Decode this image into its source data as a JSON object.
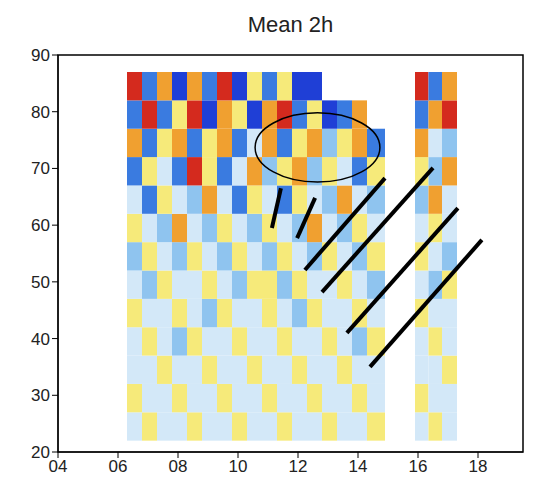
{
  "chart_data": {
    "type": "heatmap",
    "title": "Mean 2h",
    "xlim": [
      4,
      19.5
    ],
    "xticks": [
      {
        "value": 4,
        "label": "04"
      },
      {
        "value": 6,
        "label": "06"
      },
      {
        "value": 8,
        "label": "08"
      },
      10,
      12,
      14,
      16,
      18
    ],
    "ylim": [
      20,
      90
    ],
    "yticks": [
      20,
      30,
      40,
      50,
      60,
      70,
      80,
      90
    ],
    "zlim": [
      -1,
      1
    ],
    "colorscale": [
      {
        "value": -1,
        "color": "#1f3fd6"
      },
      {
        "value": -0.6,
        "color": "#3a7be0"
      },
      {
        "value": -0.3,
        "color": "#8fc4ef"
      },
      {
        "value": 0,
        "color": "#d3e8f8"
      },
      {
        "value": 0.3,
        "color": "#f6ea7a"
      },
      {
        "value": 0.6,
        "color": "#f0a030"
      },
      {
        "value": 1,
        "color": "#d42a1e"
      }
    ],
    "panels": [
      {
        "x_edges": [
          6.3,
          6.8,
          7.3,
          7.8,
          8.3,
          8.8,
          9.3,
          9.8,
          10.3,
          10.8,
          11.3,
          11.8,
          12.3,
          12.8,
          13.3,
          13.8,
          14.3,
          14.9
        ],
        "y_edges": [
          22,
          27,
          32,
          37,
          42,
          47,
          52,
          57,
          62,
          67,
          72,
          77,
          82,
          87
        ],
        "cells": [
          [
            0,
            0.3,
            0,
            0,
            0.3,
            0,
            0,
            0.3,
            0,
            0,
            0.3,
            0,
            0,
            0.3,
            0,
            0,
            0.3
          ],
          [
            0.3,
            0,
            0,
            0.3,
            0,
            0,
            0.3,
            0,
            0,
            0.3,
            0,
            0,
            0.3,
            0,
            0,
            0.3,
            0
          ],
          [
            0,
            0,
            0.3,
            0,
            0,
            0.3,
            0,
            0,
            0.3,
            0,
            0,
            0.3,
            0,
            0,
            0.3,
            0,
            0
          ],
          [
            0,
            0.3,
            0,
            -0.3,
            0.3,
            0,
            0,
            0.3,
            0,
            0,
            0.3,
            0,
            0,
            0.3,
            0,
            -0.3,
            0.3
          ],
          [
            0.3,
            0,
            0,
            0.3,
            0,
            -0.3,
            0.3,
            0,
            0,
            0.3,
            0,
            -0.3,
            0.3,
            0,
            0,
            0.3,
            0
          ],
          [
            0,
            -0.3,
            0.3,
            0,
            0,
            0.3,
            0,
            -0.3,
            0.3,
            0.3,
            -0.3,
            0.3,
            0,
            0,
            0.3,
            0,
            -0.3
          ],
          [
            -0.3,
            0.3,
            0,
            -0.3,
            0.3,
            0,
            -0.3,
            0.3,
            0,
            -0.3,
            0.3,
            0,
            -0.3,
            0.3,
            0,
            -0.3,
            0.3
          ],
          [
            0.3,
            0,
            -0.3,
            0.6,
            0,
            -0.3,
            0.3,
            0,
            -0.3,
            0.3,
            0,
            -0.3,
            0.6,
            0,
            -0.3,
            0.3,
            0
          ],
          [
            0,
            -0.6,
            0.3,
            0,
            -0.3,
            0.6,
            0,
            -0.6,
            0.3,
            0,
            -0.6,
            0.3,
            0,
            -0.3,
            0.6,
            0,
            -0.3
          ],
          [
            -0.6,
            0.3,
            0,
            -0.6,
            1,
            0.3,
            -0.6,
            0,
            0.6,
            -0.3,
            0.3,
            0.6,
            -0.3,
            0.3,
            0,
            -0.6,
            0.3
          ],
          [
            0.6,
            -0.6,
            0.3,
            0.6,
            -0.6,
            0.3,
            0.6,
            -0.6,
            0,
            0.6,
            -0.6,
            0.3,
            0.6,
            -0.3,
            0.3,
            0.6,
            -0.6
          ],
          [
            -0.6,
            1,
            -0.6,
            0.3,
            1,
            -1,
            0.6,
            0.3,
            -1,
            0.6,
            1,
            -0.6,
            0.3,
            -1,
            -0.6,
            0.6,
            null
          ],
          [
            1,
            -0.6,
            0.6,
            -1,
            0.6,
            -0.6,
            1,
            -1,
            0.3,
            -0.6,
            0.3,
            -1,
            -1,
            null,
            null,
            null,
            null
          ]
        ]
      },
      {
        "x_edges": [
          15.9,
          16.35,
          16.8,
          17.3
        ],
        "y_edges": [
          22,
          27,
          32,
          37,
          42,
          47,
          52,
          57,
          62,
          67,
          72,
          77,
          82,
          87
        ],
        "cells": [
          [
            0,
            0.3,
            0
          ],
          [
            0.3,
            0,
            0
          ],
          [
            0,
            0,
            0.3
          ],
          [
            0,
            0.3,
            0
          ],
          [
            0.3,
            0,
            0
          ],
          [
            0,
            -0.3,
            0.3
          ],
          [
            0.3,
            0,
            -0.3
          ],
          [
            0,
            0.3,
            0
          ],
          [
            -0.3,
            0.6,
            0
          ],
          [
            0.3,
            -0.3,
            0.6
          ],
          [
            0.6,
            0,
            -0.3
          ],
          [
            -0.6,
            0.6,
            1
          ],
          [
            1,
            -0.6,
            0.6
          ]
        ]
      }
    ],
    "annotations": {
      "ellipse": {
        "x": [
          10.57,
          14.73
        ],
        "y": [
          67.6,
          79.8
        ]
      },
      "lines": [
        {
          "x": [
            11.43,
            11.13
          ],
          "y": [
            66.5,
            59.5
          ]
        },
        {
          "x": [
            12.57,
            11.97
          ],
          "y": [
            64.8,
            57.7
          ]
        },
        {
          "x": [
            14.9,
            12.23
          ],
          "y": [
            68.3,
            52.1
          ]
        },
        {
          "x": [
            16.5,
            12.8
          ],
          "y": [
            70.1,
            48.2
          ]
        },
        {
          "x": [
            17.33,
            13.63
          ],
          "y": [
            63.0,
            41.0
          ]
        },
        {
          "x": [
            18.13,
            14.4
          ],
          "y": [
            57.4,
            35.0
          ]
        }
      ]
    }
  }
}
